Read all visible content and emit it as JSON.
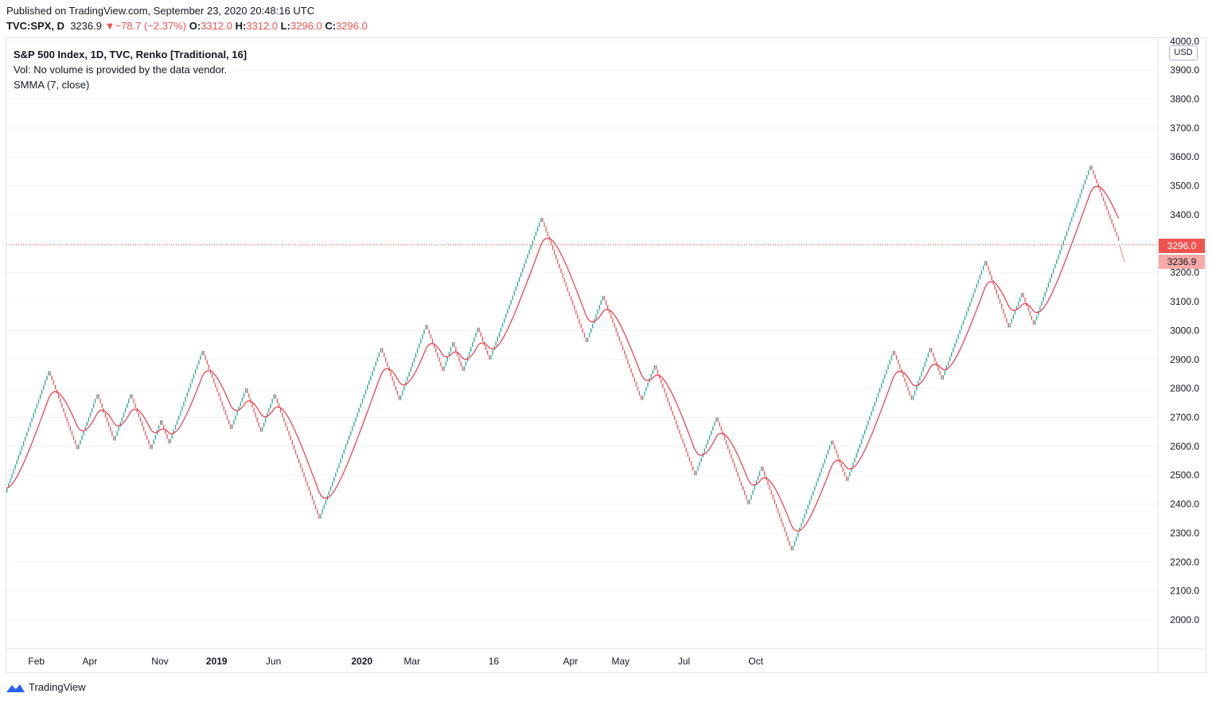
{
  "header": {
    "published": "Published on TradingView.com, September 23, 2020 20:48:16 UTC",
    "symbol": "TVC:SPX, D",
    "last": "3236.9",
    "change": "−78.7 (−2.37%)",
    "open_label": "O:",
    "open": "3312.0",
    "high_label": "H:",
    "high": "3312.0",
    "low_label": "L:",
    "low": "3296.0",
    "close_label": "C:",
    "close": "3296.0",
    "arrow_icon": "triangle-down-icon"
  },
  "legend": {
    "title": "S&P 500 Index, 1D, TVC, Renko [Traditional, 16]",
    "volume": "Vol: No volume is provided by the data vendor.",
    "indicator": "SMMA (7, close)"
  },
  "price_scale": {
    "currency": "USD",
    "last_tag": "3296.0",
    "close_tag": "3236.9"
  },
  "footer": {
    "logo_text": "TradingView",
    "logo_icon": "tradingview-cloud-icon"
  },
  "colors": {
    "up": "#26a69a",
    "down": "#ef5350",
    "smma": "#f23645",
    "grid": "#f0f3fa"
  },
  "chart_data": {
    "type": "line",
    "subtype": "renko",
    "brick_size": 16,
    "y_ticks": [
      "2000.0",
      "2100.0",
      "2200.0",
      "2300.0",
      "2400.0",
      "2500.0",
      "2600.0",
      "2700.0",
      "2800.0",
      "2900.0",
      "3000.0",
      "3100.0",
      "3200.0",
      "3300.0",
      "3400.0",
      "3500.0",
      "3600.0",
      "3700.0",
      "3800.0",
      "3900.0",
      "4000.0"
    ],
    "ylim": [
      1990,
      4010
    ],
    "x_labels": [
      {
        "label": "Feb",
        "brick": 18,
        "bold": false
      },
      {
        "label": "Apr",
        "brick": 50,
        "bold": false
      },
      {
        "label": "Nov",
        "brick": 92,
        "bold": false
      },
      {
        "label": "2019",
        "brick": 126,
        "bold": true
      },
      {
        "label": "Jun",
        "brick": 160,
        "bold": false
      },
      {
        "label": "2020",
        "brick": 213,
        "bold": true
      },
      {
        "label": "Mar",
        "brick": 243,
        "bold": false
      },
      {
        "label": "16",
        "brick": 292,
        "bold": false
      },
      {
        "label": "Apr",
        "brick": 338,
        "bold": false
      },
      {
        "label": "May",
        "brick": 368,
        "bold": false
      },
      {
        "label": "Jul",
        "brick": 406,
        "bold": false
      },
      {
        "label": "Oct",
        "brick": 449,
        "bold": false
      }
    ],
    "renko_turns": [
      2440,
      2860,
      2590,
      2780,
      2620,
      2780,
      2590,
      2690,
      2610,
      2930,
      2660,
      2800,
      2650,
      2780,
      2350,
      2940,
      2760,
      3020,
      2860,
      2960,
      2860,
      3010,
      2900,
      3390,
      2960,
      3120,
      2760,
      2880,
      2500,
      2700,
      2400,
      2530,
      2240,
      2620,
      2480,
      2930,
      2760,
      2940,
      2830,
      3240,
      3010,
      3130,
      3020,
      3570,
      3370,
      3310
    ],
    "renko_pad_end": 11,
    "smma": {
      "name": "SMMA (7, close)",
      "period": 7,
      "last_value": 3350
    },
    "last_price": 3296.0,
    "live_price": 3236.9
  }
}
